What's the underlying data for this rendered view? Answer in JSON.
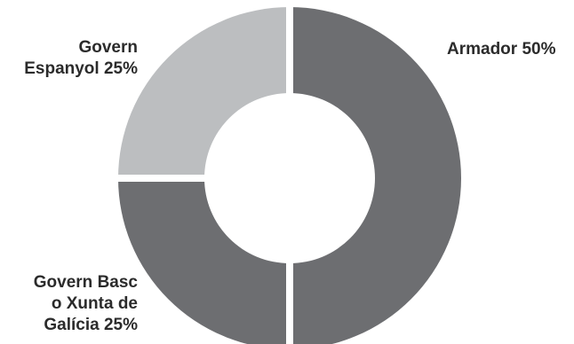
{
  "chart_data": {
    "type": "pie",
    "variant": "donut",
    "categories": [
      "Armador",
      "Govern Espanyol",
      "Govern Basc o Xunta de Galícia"
    ],
    "values": [
      50,
      25,
      25
    ],
    "unit": "%",
    "colors": [
      "#6d6e71",
      "#6d6e71",
      "#bcbec0"
    ],
    "separator_color": "#ffffff",
    "labels": [
      "Armador 50%",
      "Govern\nEspanyol 25%",
      "Govern Basc\no Xunta de\nGalícia 25%"
    ],
    "title": "",
    "legend": "none"
  }
}
